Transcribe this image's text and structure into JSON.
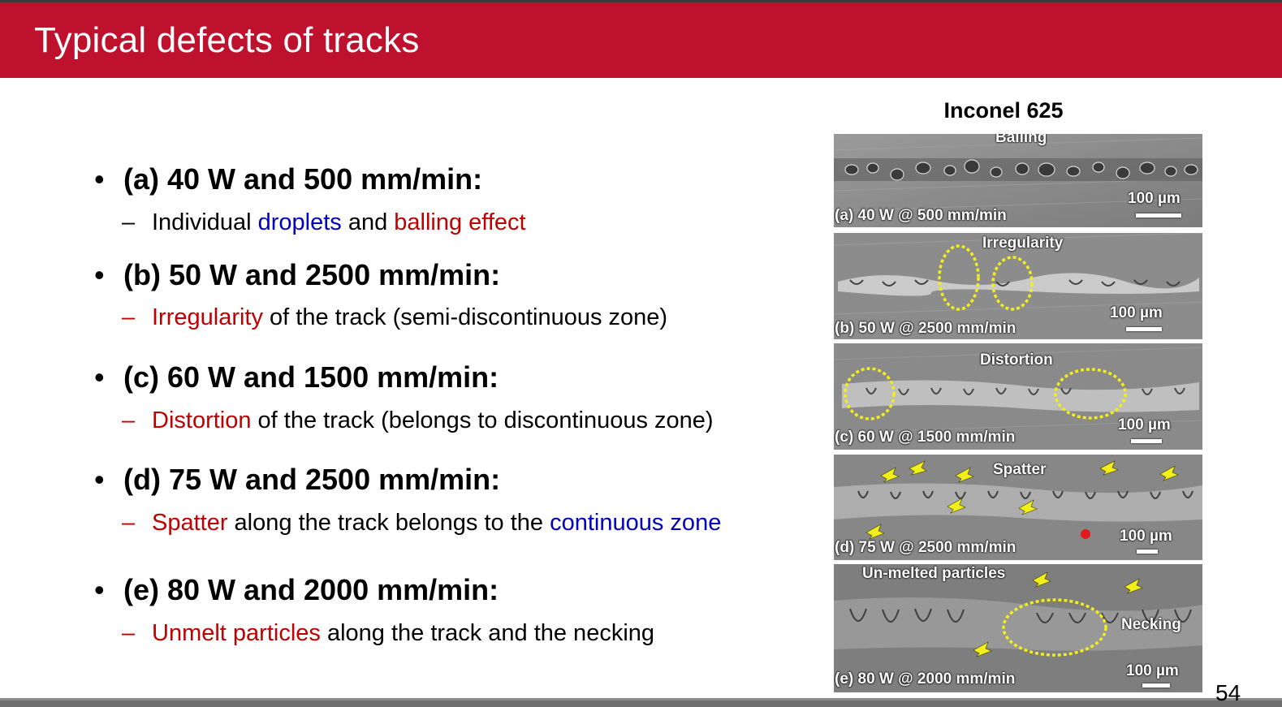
{
  "title": "Typical defects of tracks",
  "bullets": [
    {
      "heading": "(a) 40 W and 500 mm/min:",
      "detail": [
        {
          "text": "Individual ",
          "color": "#000000"
        },
        {
          "text": "droplets",
          "color": "#0000c0"
        },
        {
          "text": " and ",
          "color": "#000000"
        },
        {
          "text": "balling effect",
          "color": "#c00000"
        }
      ],
      "dash_color": "#000000"
    },
    {
      "heading": "(b) 50 W and 2500 mm/min:",
      "detail": [
        {
          "text": "Irregularity",
          "color": "#c00000"
        },
        {
          "text": " of the track (semi-discontinuous zone)",
          "color": "#000000"
        }
      ],
      "dash_color": "#c00000"
    },
    {
      "heading": "(c) 60 W and 1500 mm/min:",
      "detail": [
        {
          "text": "Distortion",
          "color": "#c00000"
        },
        {
          "text": " of the track (belongs to discontinuous zone)",
          "color": "#000000"
        }
      ],
      "dash_color": "#c00000"
    },
    {
      "heading": "(d) 75 W and 2500 mm/min:",
      "detail": [
        {
          "text": "Spatter",
          "color": "#c00000"
        },
        {
          "text": " along the track belongs to the ",
          "color": "#000000"
        },
        {
          "text": "continuous zone",
          "color": "#0000c0"
        }
      ],
      "dash_color": "#c00000"
    },
    {
      "heading": "(e) 80 W and 2000 mm/min:",
      "detail": [
        {
          "text": "Unmelt particles",
          "color": "#c00000"
        },
        {
          "text": " along the track and the necking",
          "color": "#000000"
        }
      ],
      "dash_color": "#c00000"
    }
  ],
  "figure": {
    "title": "Inconel 625",
    "panels": [
      {
        "label": "(a) 40 W @ 500 mm/min",
        "scale": "100 µm",
        "defects": [
          "Balling"
        ]
      },
      {
        "label": "(b) 50 W @ 2500 mm/min",
        "scale": "100 µm",
        "defects": [
          "Irregularity"
        ]
      },
      {
        "label": "(c) 60 W @ 1500 mm/min",
        "scale": "100 µm",
        "defects": [
          "Distortion"
        ]
      },
      {
        "label": "(d) 75 W @ 2500 mm/min",
        "scale": "100 µm",
        "defects": [
          "Spatter"
        ]
      },
      {
        "label": "(e) 80 W @ 2000 mm/min",
        "scale": "100 µm",
        "defects": [
          "Un-melted particles",
          "Necking"
        ]
      }
    ]
  },
  "page_number": "54",
  "colors": {
    "title_bar": "#be112e",
    "highlight_red": "#c00000",
    "highlight_blue": "#0000c0",
    "annotation_yellow": "#f2ee1a"
  }
}
